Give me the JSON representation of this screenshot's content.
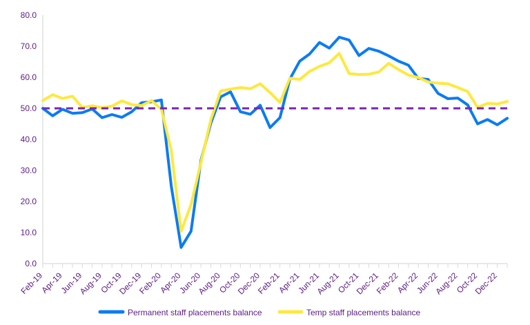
{
  "colors": {
    "permanent": "#0a7cf2",
    "temp": "#ffe83f",
    "reference": "#7b22b6",
    "axis": "#d9d9d9",
    "text": "#5b1a86"
  },
  "chart_data": {
    "type": "line",
    "ylim": [
      0,
      80
    ],
    "yticks": [
      "0.0",
      "10.0",
      "20.0",
      "30.0",
      "40.0",
      "50.0",
      "60.0",
      "70.0",
      "80.0"
    ],
    "x": [
      "Feb-19",
      "Mar-19",
      "Apr-19",
      "May-19",
      "Jun-19",
      "Jul-19",
      "Aug-19",
      "Sep-19",
      "Oct-19",
      "Nov-19",
      "Dec-19",
      "Jan-20",
      "Feb-20",
      "Mar-20",
      "Apr-20",
      "May-20",
      "Jun-20",
      "Jul-20",
      "Aug-20",
      "Sep-20",
      "Oct-20",
      "Nov-20",
      "Dec-20",
      "Jan-21",
      "Feb-21",
      "Mar-21",
      "Apr-21",
      "May-21",
      "Jun-21",
      "Jul-21",
      "Aug-21",
      "Sep-21",
      "Oct-21",
      "Nov-21",
      "Dec-21",
      "Jan-22",
      "Feb-22",
      "Mar-22",
      "Apr-22",
      "May-22",
      "Jun-22",
      "Jul-22",
      "Aug-22",
      "Sep-22",
      "Oct-22",
      "Nov-22",
      "Dec-22",
      "Jan-23"
    ],
    "xticks": [
      "Feb-19",
      "Apr-19",
      "Jun-19",
      "Aug-19",
      "Oct-19",
      "Dec-19",
      "Feb-20",
      "Apr-20",
      "Jun-20",
      "Aug-20",
      "Oct-20",
      "Dec-20",
      "Feb-21",
      "Apr-21",
      "Jun-21",
      "Aug-21",
      "Oct-21",
      "Dec-21",
      "Feb-22",
      "Apr-22",
      "Jun-22",
      "Aug-22",
      "Oct-22",
      "Dec-22"
    ],
    "reference_line": 50,
    "series": [
      {
        "name": "Permanent staff placements balance",
        "values": [
          50.0,
          47.6,
          49.7,
          48.4,
          48.6,
          49.8,
          47.0,
          48.0,
          47.1,
          48.9,
          51.8,
          52.1,
          52.7,
          25.0,
          5.2,
          10.4,
          33.2,
          45.2,
          53.7,
          55.3,
          48.9,
          48.1,
          51.0,
          43.8,
          47.0,
          59.4,
          65.2,
          67.5,
          71.2,
          69.4,
          72.9,
          72.0,
          67.0,
          69.3,
          68.4,
          66.9,
          65.2,
          63.9,
          59.6,
          59.3,
          54.8,
          53.1,
          53.3,
          51.1,
          45.0,
          46.4,
          44.7,
          46.8
        ]
      },
      {
        "name": "Temp staff placements balance",
        "values": [
          52.5,
          54.4,
          53.2,
          53.9,
          50.3,
          50.8,
          50.2,
          50.7,
          52.4,
          51.2,
          50.9,
          52.5,
          49.7,
          36.5,
          10.4,
          19.0,
          32.5,
          46.3,
          55.6,
          56.2,
          56.7,
          56.3,
          57.9,
          55.1,
          51.9,
          59.7,
          59.3,
          61.9,
          63.5,
          64.7,
          67.7,
          61.2,
          60.9,
          61.0,
          61.7,
          64.5,
          62.5,
          60.7,
          59.9,
          58.5,
          58.1,
          57.9,
          56.7,
          55.4,
          50.3,
          51.6,
          51.4,
          52.2
        ]
      }
    ],
    "legend_position": "bottom"
  },
  "legend": {
    "permanent_label": "Permanent staff placements balance",
    "temp_label": "Temp staff placements balance"
  }
}
